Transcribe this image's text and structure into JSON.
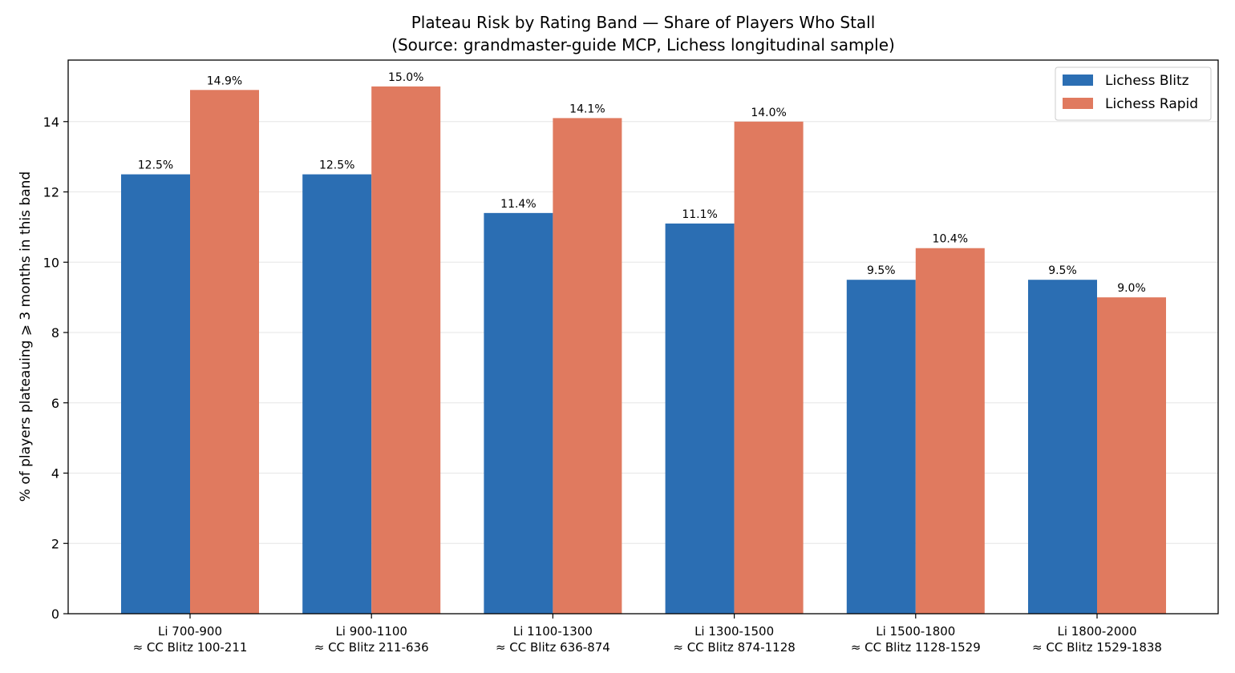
{
  "chart_data": {
    "type": "bar",
    "title": "Plateau Risk by Rating Band — Share of Players Who Stall",
    "subtitle": "(Source: grandmaster-guide MCP, Lichess longitudinal sample)",
    "xlabel": "",
    "ylabel": "% of players plateauing ⩾ 3 months in this band",
    "ylim": [
      0,
      15.75
    ],
    "yticks": [
      0,
      2,
      4,
      6,
      8,
      10,
      12,
      14
    ],
    "grid": "horizontal",
    "legend_placement": "top-right",
    "categories": [
      [
        "Li 700-900",
        "≈ CC Blitz 100-211"
      ],
      [
        "Li 900-1100",
        "≈ CC Blitz 211-636"
      ],
      [
        "Li 1100-1300",
        "≈ CC Blitz 636-874"
      ],
      [
        "Li 1300-1500",
        "≈ CC Blitz 874-1128"
      ],
      [
        "Li 1500-1800",
        "≈ CC Blitz 1128-1529"
      ],
      [
        "Li 1800-2000",
        "≈ CC Blitz 1529-1838"
      ]
    ],
    "series": [
      {
        "name": "Lichess Blitz",
        "color": "#2b6eb3",
        "values": [
          12.5,
          12.5,
          11.4,
          11.1,
          9.5,
          9.5
        ],
        "labels": [
          "12.5%",
          "12.5%",
          "11.4%",
          "11.1%",
          "9.5%",
          "9.5%"
        ]
      },
      {
        "name": "Lichess Rapid",
        "color": "#e07a5f",
        "values": [
          14.9,
          15.0,
          14.1,
          14.0,
          10.4,
          9.0
        ],
        "labels": [
          "14.9%",
          "15.0%",
          "14.1%",
          "14.0%",
          "10.4%",
          "9.0%"
        ]
      }
    ]
  }
}
